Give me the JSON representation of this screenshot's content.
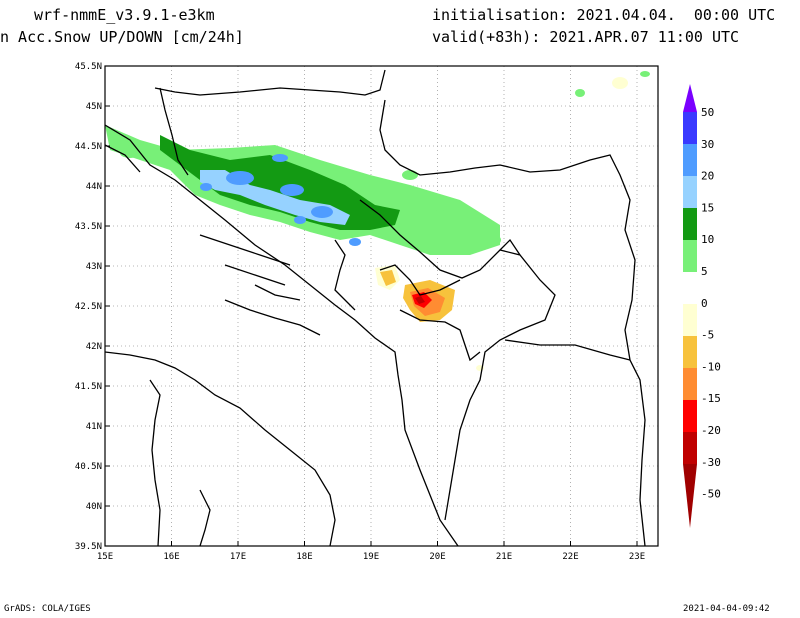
{
  "header": {
    "model": "wrf-nmmE_v3.9.1-e3km",
    "variable": "n Acc.Snow UP/DOWN [cm/24h]",
    "init": "initialisation: 2021.04.04.  00:00 UTC",
    "valid": "valid(+83h): 2021.APR.07 11:00 UTC"
  },
  "footer": {
    "left": "GrADS: COLA/IGES",
    "right": "2021-04-04-09:42"
  },
  "axes": {
    "lat_labels": [
      "45.5N",
      "45N",
      "44.5N",
      "44N",
      "43.5N",
      "43N",
      "42.5N",
      "42N",
      "41.5N",
      "41N",
      "40.5N",
      "40N",
      "39.5N"
    ],
    "lon_labels": [
      "15E",
      "16E",
      "17E",
      "18E",
      "19E",
      "20E",
      "21E",
      "22E",
      "23E"
    ]
  },
  "colorbar": {
    "labels": [
      "50",
      "30",
      "20",
      "15",
      "10",
      "5",
      "0",
      "-5",
      "-10",
      "-15",
      "-20",
      "-30",
      "-50"
    ],
    "colors": [
      "#7a00ff",
      "#3a3aff",
      "#4f9cff",
      "#96d2ff",
      "#139a13",
      "#78f078",
      "#ffffff",
      "#ffffd2",
      "#f7c23c",
      "#ff8c32",
      "#ff0000",
      "#c00000",
      "#a00000"
    ]
  },
  "colors": {
    "map_border": "#000000",
    "grid": "#a0a0a0"
  }
}
